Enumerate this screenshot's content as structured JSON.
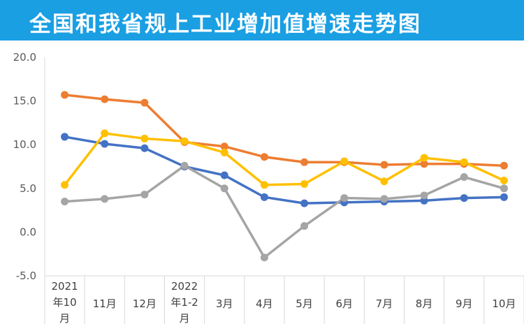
{
  "title": "全国和我省规上工业增加值增速走势图",
  "chart_data": {
    "type": "line",
    "categories": [
      [
        "2021",
        "年10",
        "月"
      ],
      [
        "11月"
      ],
      [
        "12月"
      ],
      [
        "2022",
        "年1-2",
        "月"
      ],
      [
        "3月"
      ],
      [
        "4月"
      ],
      [
        "5月"
      ],
      [
        "6月"
      ],
      [
        "7月"
      ],
      [
        "8月"
      ],
      [
        "9月"
      ],
      [
        "10月"
      ]
    ],
    "ylim": [
      -5,
      20
    ],
    "yticks": [
      "20.0",
      "15.0",
      "10.0",
      "5.0",
      "0.0",
      "-5.0"
    ],
    "ytick_values": [
      20,
      15,
      10,
      5,
      0,
      -5
    ],
    "grid": false,
    "series": [
      {
        "color": "#ed7d31",
        "values": [
          15.7,
          15.2,
          14.8,
          10.3,
          9.8,
          8.6,
          8.0,
          8.0,
          7.7,
          7.8,
          7.8,
          7.6
        ]
      },
      {
        "color": "#4472c4",
        "values": [
          10.9,
          10.1,
          9.6,
          7.5,
          6.5,
          4.0,
          3.3,
          3.4,
          3.5,
          3.6,
          3.9,
          4.0
        ]
      },
      {
        "color": "#ffc000",
        "values": [
          5.4,
          11.3,
          10.7,
          10.4,
          9.1,
          5.4,
          5.5,
          8.1,
          5.8,
          8.5,
          8.0,
          5.9
        ]
      },
      {
        "color": "#a5a5a5",
        "values": [
          3.5,
          3.8,
          4.3,
          7.6,
          5.0,
          -2.9,
          0.7,
          3.9,
          3.8,
          4.2,
          6.3,
          5.0
        ]
      }
    ]
  }
}
